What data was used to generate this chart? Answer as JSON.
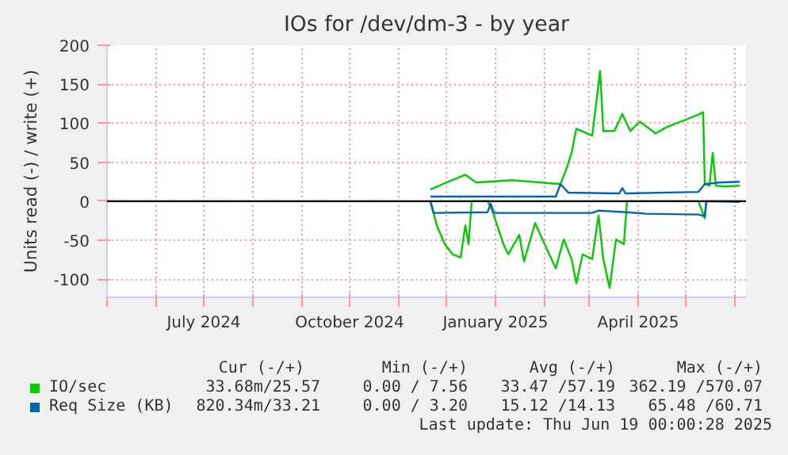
{
  "chart_data": {
    "type": "line",
    "title": "IOs for /dev/dm-3 - by year",
    "ylabel": "Units read (-) / write (+)",
    "xlim": [
      "2024-05-01",
      "2025-06-08"
    ],
    "xticks": [
      {
        "value": "2024-05-01",
        "label": null
      },
      {
        "value": "2024-06-01",
        "label": null
      },
      {
        "value": "2024-07-01",
        "label": "July 2024"
      },
      {
        "value": "2024-08-01",
        "label": null
      },
      {
        "value": "2024-09-01",
        "label": null
      },
      {
        "value": "2024-10-01",
        "label": "October 2024"
      },
      {
        "value": "2024-11-01",
        "label": null
      },
      {
        "value": "2024-12-01",
        "label": null
      },
      {
        "value": "2025-01-01",
        "label": "January 2025"
      },
      {
        "value": "2025-02-01",
        "label": null
      },
      {
        "value": "2025-03-01",
        "label": null
      },
      {
        "value": "2025-04-01",
        "label": "April 2025"
      },
      {
        "value": "2025-05-01",
        "label": null
      },
      {
        "value": "2025-06-01",
        "label": null
      }
    ],
    "ylim": [
      -123,
      200
    ],
    "yticks": [
      -100,
      -50,
      0,
      50,
      100,
      150,
      200
    ],
    "grid": true,
    "legend": "bottom",
    "ref_lines": [
      {
        "axis": "y",
        "value": 0,
        "color": "#000000"
      }
    ],
    "series": [
      {
        "name": "IO/sec",
        "color": "#00cc00",
        "x": [
          "2024-11-21",
          "2024-12-01",
          "2024-12-13",
          "2024-12-20",
          "2025-01-12",
          "2025-02-11",
          "2025-02-15",
          "2025-02-18",
          "2025-02-21",
          "2025-03-03",
          "2025-03-08",
          "2025-03-10",
          "2025-03-17",
          "2025-03-22",
          "2025-03-27",
          "2025-04-02",
          "2025-04-12",
          "2025-04-19",
          "2025-04-29",
          "2025-05-09",
          "2025-05-12",
          "2025-05-13",
          "2025-05-16",
          "2025-05-18",
          "2025-05-20",
          "2025-05-26",
          "2025-06-04"
        ],
        "values": [
          15,
          24,
          34,
          24,
          27,
          22,
          43,
          62,
          93,
          84,
          167,
          90,
          90,
          112,
          90,
          102,
          87,
          95,
          103,
          111,
          114,
          22,
          20,
          62,
          20,
          19,
          20
        ]
      },
      {
        "color": "#00cc00",
        "x": [
          "2024-11-21",
          "2024-11-25",
          "2024-11-30",
          "2024-12-05",
          "2024-12-10",
          "2024-12-13",
          "2024-12-15",
          "2024-12-17",
          "2024-12-27",
          "2024-12-30",
          "2025-01-06",
          "2025-01-09",
          "2025-01-16",
          "2025-01-19",
          "2025-01-26",
          "2025-02-01",
          "2025-02-08",
          "2025-02-13",
          "2025-02-18",
          "2025-02-21",
          "2025-02-25",
          "2025-03-03",
          "2025-03-07",
          "2025-03-10",
          "2025-03-14",
          "2025-03-18",
          "2025-03-23",
          "2025-03-25",
          "2025-05-09",
          "2025-05-13",
          "2025-05-14",
          "2025-06-04"
        ],
        "values": [
          0,
          -31,
          -55,
          -68,
          -72,
          -31,
          -55,
          0,
          0,
          -12,
          -55,
          -68,
          -43,
          -77,
          -28,
          -55,
          -86,
          -49,
          -74,
          -105,
          -68,
          -74,
          -18,
          -74,
          -111,
          -49,
          -55,
          0,
          0,
          -22,
          0,
          0
        ]
      },
      {
        "name": "Req Size (KB)",
        "color": "#0066b3",
        "x": [
          "2024-11-21",
          "2025-02-08",
          "2025-02-11",
          "2025-02-16",
          "2025-03-20",
          "2025-03-22",
          "2025-03-24",
          "2025-05-09",
          "2025-05-13",
          "2025-05-22",
          "2025-06-04"
        ],
        "values": [
          6,
          6,
          22,
          11,
          10,
          17,
          10,
          12,
          22,
          24,
          25
        ]
      },
      {
        "color": "#0066b3",
        "x": [
          "2024-11-21",
          "2024-11-23",
          "2024-12-27",
          "2024-12-29",
          "2024-12-31",
          "2025-03-03",
          "2025-03-07",
          "2025-03-25",
          "2025-04-06",
          "2025-05-09",
          "2025-05-13",
          "2025-05-14",
          "2025-06-04"
        ],
        "values": [
          0,
          -15,
          -14,
          -3,
          -15,
          -15,
          -12,
          -14,
          -16,
          -17,
          -19,
          0,
          -1
        ]
      }
    ],
    "annotations": [
      "Cur (-/+)",
      "Min (-/+)",
      "Avg (-/+)",
      "Max (-/+)",
      "33.68m/25.57",
      "0.00 / 7.56",
      "33.47 /57.19",
      "362.19 /570.07",
      "820.34m/33.21",
      "0.00 / 3.20",
      "15.12 /14.13",
      "65.48 /60.71",
      "Last update: Thu Jun 19 00:00:28 2025"
    ]
  }
}
